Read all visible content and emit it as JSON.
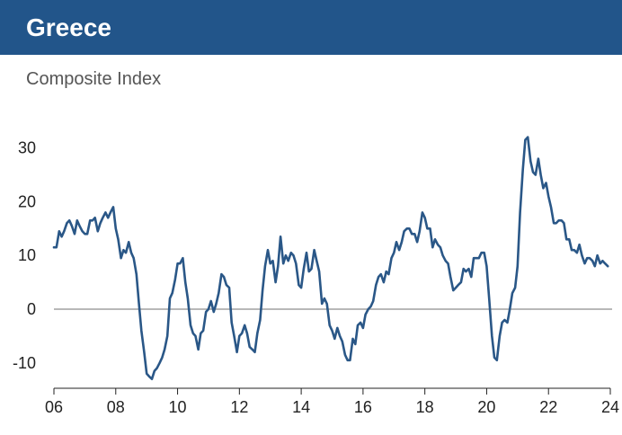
{
  "header": {
    "title": "Greece"
  },
  "colors": {
    "header_bg": "#22558a",
    "line": "#2a5787",
    "zero_line": "#a0a0a0"
  },
  "chart_data": {
    "type": "line",
    "title": "Greece",
    "subtitle": "Composite Index",
    "xlabel": "",
    "ylabel": "",
    "x_ticks": [
      "06",
      "08",
      "10",
      "12",
      "14",
      "16",
      "18",
      "20",
      "22",
      "24"
    ],
    "y_ticks": [
      "30",
      "20",
      "10",
      "0",
      "-10"
    ],
    "xlim": [
      2006,
      2024
    ],
    "ylim": [
      -14,
      32
    ],
    "grid": false,
    "reference_line": 0,
    "series": [
      {
        "x": [
          2006.0,
          2006.08,
          2006.17,
          2006.25,
          2006.33,
          2006.42,
          2006.5,
          2006.58,
          2006.67,
          2006.75,
          2006.83,
          2006.92,
          2007.0,
          2007.08,
          2007.17,
          2007.25,
          2007.33,
          2007.42,
          2007.5,
          2007.58,
          2007.67,
          2007.75,
          2007.83,
          2007.92,
          2008.0,
          2008.08,
          2008.17,
          2008.25,
          2008.33,
          2008.42,
          2008.5,
          2008.58,
          2008.67,
          2008.75,
          2008.83,
          2008.92,
          2009.0,
          2009.08,
          2009.17,
          2009.25,
          2009.33,
          2009.42,
          2009.5,
          2009.58,
          2009.67,
          2009.75,
          2009.83,
          2009.92,
          2010.0,
          2010.08,
          2010.17,
          2010.25,
          2010.33,
          2010.42,
          2010.5,
          2010.58,
          2010.67,
          2010.75,
          2010.83,
          2010.92,
          2011.0,
          2011.08,
          2011.17,
          2011.25,
          2011.33,
          2011.42,
          2011.5,
          2011.58,
          2011.67,
          2011.75,
          2011.83,
          2011.92,
          2012.0,
          2012.08,
          2012.17,
          2012.25,
          2012.33,
          2012.42,
          2012.5,
          2012.58,
          2012.67,
          2012.75,
          2012.83,
          2012.92,
          2013.0,
          2013.08,
          2013.17,
          2013.25,
          2013.33,
          2013.42,
          2013.5,
          2013.58,
          2013.67,
          2013.75,
          2013.83,
          2013.92,
          2014.0,
          2014.08,
          2014.17,
          2014.25,
          2014.33,
          2014.42,
          2014.5,
          2014.58,
          2014.67,
          2014.75,
          2014.83,
          2014.92,
          2015.0,
          2015.08,
          2015.17,
          2015.25,
          2015.33,
          2015.42,
          2015.5,
          2015.58,
          2015.67,
          2015.75,
          2015.83,
          2015.92,
          2016.0,
          2016.08,
          2016.17,
          2016.25,
          2016.33,
          2016.42,
          2016.5,
          2016.58,
          2016.67,
          2016.75,
          2016.83,
          2016.92,
          2017.0,
          2017.08,
          2017.17,
          2017.25,
          2017.33,
          2017.42,
          2017.5,
          2017.58,
          2017.67,
          2017.75,
          2017.83,
          2017.92,
          2018.0,
          2018.08,
          2018.17,
          2018.25,
          2018.33,
          2018.42,
          2018.5,
          2018.58,
          2018.67,
          2018.75,
          2018.83,
          2018.92,
          2019.0,
          2019.08,
          2019.17,
          2019.25,
          2019.33,
          2019.42,
          2019.5,
          2019.58,
          2019.67,
          2019.75,
          2019.83,
          2019.92,
          2020.0,
          2020.08,
          2020.17,
          2020.25,
          2020.33,
          2020.42,
          2020.5,
          2020.58,
          2020.67,
          2020.75,
          2020.83,
          2020.92,
          2021.0,
          2021.08,
          2021.17,
          2021.25,
          2021.33,
          2021.42,
          2021.5,
          2021.58,
          2021.67,
          2021.75,
          2021.83,
          2021.92,
          2022.0,
          2022.08,
          2022.17,
          2022.25,
          2022.33,
          2022.42,
          2022.5,
          2022.58,
          2022.67,
          2022.75,
          2022.83,
          2022.92,
          2023.0,
          2023.08,
          2023.17,
          2023.25,
          2023.33,
          2023.42,
          2023.5,
          2023.58,
          2023.67,
          2023.75,
          2023.83,
          2023.92
        ],
        "values": [
          11.5,
          11.5,
          14.5,
          13.5,
          14.5,
          16,
          16.5,
          15.5,
          14,
          16.5,
          15.5,
          14.5,
          14,
          14,
          16.5,
          16.5,
          17,
          14.5,
          16,
          17,
          18,
          17,
          18,
          19,
          15,
          13,
          9.5,
          11,
          10.5,
          12.5,
          10.5,
          9.5,
          6.5,
          1,
          -4,
          -8,
          -12,
          -12.5,
          -13,
          -11.5,
          -11,
          -10,
          -9,
          -7.5,
          -5,
          2,
          3,
          5.5,
          8.5,
          8.5,
          9.5,
          5,
          2,
          -3,
          -4.5,
          -5,
          -7.5,
          -4.5,
          -4,
          -0.5,
          0,
          1.5,
          -0.5,
          1,
          3,
          6.5,
          6,
          4.5,
          4,
          -2.5,
          -5,
          -8,
          -5,
          -4.5,
          -3,
          -4.5,
          -7,
          -7.5,
          -8,
          -4.5,
          -2,
          3.5,
          8,
          11,
          8.5,
          9,
          5,
          8,
          13.5,
          8.5,
          10,
          9,
          10.5,
          10,
          8.5,
          4.5,
          4,
          7.5,
          10.5,
          7,
          7.5,
          11,
          9,
          7,
          1,
          2,
          1,
          -3,
          -4,
          -5.5,
          -3.5,
          -5,
          -6,
          -8.5,
          -9.5,
          -9.5,
          -5.5,
          -6.5,
          -3,
          -2.5,
          -3.5,
          -1,
          0,
          0.5,
          1.5,
          4.5,
          6,
          6.5,
          5,
          7,
          6.5,
          9.5,
          10.5,
          12.5,
          11,
          12.5,
          14.5,
          15,
          15,
          14,
          14,
          12.5,
          14.5,
          18,
          17,
          15,
          15,
          11.5,
          13,
          12,
          11.5,
          10,
          9,
          8.5,
          6,
          3.5,
          4,
          4.5,
          5,
          7.5,
          7,
          7.5,
          6,
          9.5,
          9.5,
          9.5,
          10.5,
          10.5,
          8,
          2,
          -5,
          -9,
          -9.5,
          -5,
          -2.5,
          -2,
          -2.5,
          0,
          3,
          4,
          8,
          18,
          26,
          31.5,
          32,
          27.5,
          25.5,
          25,
          28,
          25,
          22.5,
          23.5,
          21,
          19,
          16,
          16,
          16.5,
          16.5,
          16,
          13,
          13,
          11,
          11,
          10.5,
          12,
          10,
          8.5,
          9.5,
          9.5,
          9,
          8,
          10,
          8.5,
          9,
          8.5,
          8
        ]
      }
    ]
  }
}
